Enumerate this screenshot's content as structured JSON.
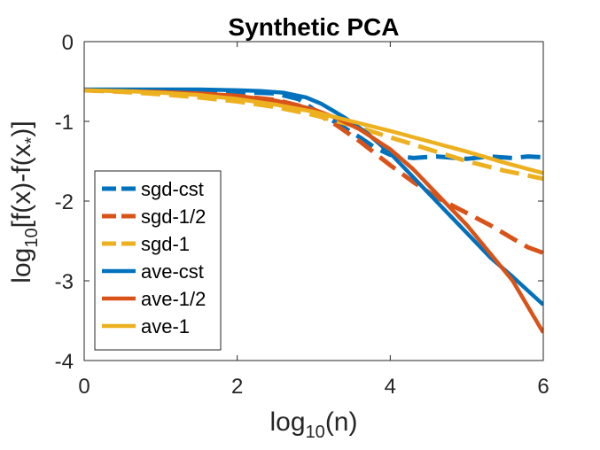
{
  "chart_data": {
    "type": "line",
    "title": "Synthetic PCA",
    "xlabel": {
      "base": "log",
      "sub": "10",
      "rest": "(n)"
    },
    "ylabel": {
      "base": "log",
      "sub": "10",
      "mid": "[f(x)-f(x",
      "sub2": "*",
      "rest": ")]"
    },
    "xlim": [
      0,
      6
    ],
    "ylim": [
      -4,
      0
    ],
    "xticks": [
      "0",
      "2",
      "4",
      "6"
    ],
    "yticks": [
      "0",
      "-1",
      "-2",
      "-3",
      "-4"
    ],
    "grid": false,
    "legend_position": "bottom-left",
    "series": [
      {
        "name": "sgd-cst",
        "color": "#0072BD",
        "dash": true,
        "x": [
          0,
          0.5,
          1,
          1.5,
          2,
          2.5,
          2.8,
          3.0,
          3.3,
          3.6,
          3.8,
          4.0,
          4.3,
          4.6,
          5.0,
          5.3,
          5.6,
          5.8,
          6.0
        ],
        "y": [
          -0.61,
          -0.61,
          -0.61,
          -0.62,
          -0.63,
          -0.65,
          -0.72,
          -0.85,
          -1.02,
          -1.2,
          -1.33,
          -1.42,
          -1.46,
          -1.44,
          -1.47,
          -1.44,
          -1.46,
          -1.44,
          -1.45
        ]
      },
      {
        "name": "sgd-1/2",
        "color": "#D95319",
        "dash": true,
        "x": [
          0,
          0.5,
          1,
          1.5,
          2,
          2.5,
          2.8,
          3.0,
          3.3,
          3.6,
          4.0,
          4.3,
          4.6,
          5.0,
          5.3,
          5.6,
          5.8,
          6.0
        ],
        "y": [
          -0.61,
          -0.62,
          -0.63,
          -0.65,
          -0.68,
          -0.73,
          -0.8,
          -0.88,
          -1.05,
          -1.25,
          -1.55,
          -1.76,
          -1.95,
          -2.15,
          -2.3,
          -2.47,
          -2.58,
          -2.65
        ]
      },
      {
        "name": "sgd-1",
        "color": "#EDB120",
        "dash": true,
        "x": [
          0,
          0.5,
          1,
          1.5,
          2,
          2.5,
          3.0,
          3.5,
          4.0,
          4.5,
          5.0,
          5.5,
          6.0
        ],
        "y": [
          -0.61,
          -0.63,
          -0.66,
          -0.7,
          -0.75,
          -0.82,
          -0.92,
          -1.05,
          -1.2,
          -1.35,
          -1.5,
          -1.62,
          -1.72
        ]
      },
      {
        "name": "ave-cst",
        "color": "#0072BD",
        "dash": false,
        "x": [
          0,
          0.5,
          1,
          1.5,
          2,
          2.3,
          2.6,
          2.9,
          3.1,
          3.4,
          3.7,
          4.0,
          4.3,
          4.6,
          5.0,
          5.3,
          5.6,
          6.0
        ],
        "y": [
          -0.6,
          -0.6,
          -0.6,
          -0.6,
          -0.61,
          -0.62,
          -0.64,
          -0.7,
          -0.78,
          -0.95,
          -1.15,
          -1.4,
          -1.7,
          -2.0,
          -2.4,
          -2.7,
          -2.95,
          -3.3
        ]
      },
      {
        "name": "ave-1/2",
        "color": "#D95319",
        "dash": false,
        "x": [
          0,
          0.5,
          1,
          1.5,
          2,
          2.5,
          3.0,
          3.3,
          3.6,
          4.0,
          4.3,
          4.6,
          5.0,
          5.3,
          5.6,
          6.0
        ],
        "y": [
          -0.61,
          -0.62,
          -0.63,
          -0.65,
          -0.68,
          -0.74,
          -0.85,
          -0.96,
          -1.1,
          -1.35,
          -1.6,
          -1.9,
          -2.3,
          -2.65,
          -3.0,
          -3.65
        ]
      },
      {
        "name": "ave-1",
        "color": "#EDB120",
        "dash": false,
        "x": [
          0,
          0.5,
          1,
          1.5,
          2,
          2.5,
          3.0,
          3.5,
          4.0,
          4.5,
          5.0,
          5.5,
          6.0
        ],
        "y": [
          -0.61,
          -0.62,
          -0.64,
          -0.67,
          -0.72,
          -0.79,
          -0.88,
          -1.0,
          -1.12,
          -1.25,
          -1.38,
          -1.52,
          -1.65
        ]
      }
    ]
  }
}
